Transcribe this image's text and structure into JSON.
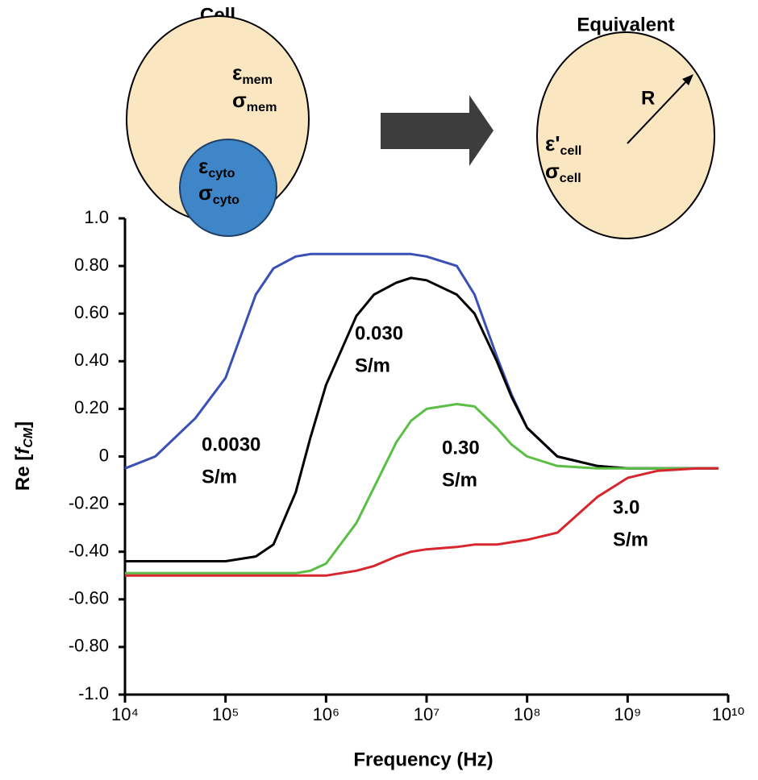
{
  "diagram": {
    "left_title": "Cell",
    "right_title": "Equivalent",
    "mem_eps": {
      "symbol": "ε",
      "sub": "mem"
    },
    "mem_sigma": {
      "symbol": "σ",
      "sub": "mem"
    },
    "cyto_eps": {
      "symbol": "ε",
      "sub": "cyto"
    },
    "cyto_sigma": {
      "symbol": "σ",
      "sub": "cyto"
    },
    "cell_eps": {
      "symbol": "ε'",
      "sub": "cell"
    },
    "cell_sigma": {
      "symbol": "σ",
      "sub": "cell"
    },
    "radius": "R"
  },
  "chart_data": {
    "type": "line",
    "x_label": "Frequency (Hz)",
    "y_label": {
      "prefix": "Re [",
      "italic": "f",
      "sub": "CM",
      "suffix": "]"
    },
    "xlog": true,
    "xlim": [
      10000,
      10000000000
    ],
    "xticks": [
      {
        "value": 10000,
        "label": "10⁴"
      },
      {
        "value": 100000,
        "label": "10⁵"
      },
      {
        "value": 1000000,
        "label": "10⁶"
      },
      {
        "value": 10000000,
        "label": "10⁷"
      },
      {
        "value": 100000000,
        "label": "10⁸"
      },
      {
        "value": 1000000000,
        "label": "10⁹"
      },
      {
        "value": 10000000000,
        "label": "10¹⁰"
      }
    ],
    "ylim": [
      -1,
      1
    ],
    "yticks": [
      {
        "value": 1,
        "label": "1.0"
      },
      {
        "value": 0.8,
        "label": "0.80"
      },
      {
        "value": 0.6,
        "label": "0.60"
      },
      {
        "value": 0.4,
        "label": "0.40"
      },
      {
        "value": 0.2,
        "label": "0.20"
      },
      0,
      {
        "value": -0.2,
        "label": "-0.20"
      },
      {
        "value": -0.4,
        "label": "-0.40"
      },
      {
        "value": -0.6,
        "label": "-0.60"
      },
      {
        "value": -0.8,
        "label": "-0.80"
      },
      {
        "value": -1,
        "label": "-1.0"
      }
    ],
    "grid": false,
    "x": [
      10000,
      20000,
      50000,
      100000,
      200000,
      300000,
      500000,
      700000,
      1000000,
      2000000,
      3000000,
      5000000,
      7000000,
      10000000,
      20000000,
      30000000,
      50000000,
      70000000,
      100000000,
      200000000,
      500000000,
      1000000000,
      2000000000,
      5000000000,
      8000000000
    ],
    "series": [
      {
        "name": "0.0030 S/m",
        "label_lines": [
          "0.0030",
          "S/m"
        ],
        "color": "#3b50b5",
        "values": [
          -0.05,
          0.0,
          0.16,
          0.33,
          0.68,
          0.79,
          0.84,
          0.85,
          0.85,
          0.85,
          0.85,
          0.85,
          0.85,
          0.84,
          0.8,
          0.68,
          0.42,
          0.26,
          0.12,
          0.0,
          -0.04,
          -0.05,
          -0.05,
          -0.05,
          -0.05
        ]
      },
      {
        "name": "0.030 S/m",
        "label_lines": [
          "0.030",
          "S/m"
        ],
        "color": "#000000",
        "values": [
          -0.44,
          -0.44,
          -0.44,
          -0.44,
          -0.42,
          -0.37,
          -0.15,
          0.08,
          0.3,
          0.59,
          0.68,
          0.73,
          0.75,
          0.74,
          0.68,
          0.6,
          0.4,
          0.25,
          0.12,
          0.0,
          -0.04,
          -0.05,
          -0.05,
          -0.05,
          -0.05
        ]
      },
      {
        "name": "0.30 S/m",
        "label_lines": [
          "0.30",
          "S/m"
        ],
        "color": "#5bbf45",
        "values": [
          -0.49,
          -0.49,
          -0.49,
          -0.49,
          -0.49,
          -0.49,
          -0.49,
          -0.48,
          -0.45,
          -0.28,
          -0.13,
          0.06,
          0.15,
          0.2,
          0.22,
          0.21,
          0.12,
          0.05,
          0.0,
          -0.04,
          -0.05,
          -0.05,
          -0.05,
          -0.05,
          -0.05
        ]
      },
      {
        "name": "3.0 S/m",
        "label_lines": [
          "3.0",
          "S/m"
        ],
        "color": "#d7262e",
        "values": [
          -0.5,
          -0.5,
          -0.5,
          -0.5,
          -0.5,
          -0.5,
          -0.5,
          -0.5,
          -0.5,
          -0.48,
          -0.46,
          -0.42,
          -0.4,
          -0.39,
          -0.38,
          -0.37,
          -0.37,
          -0.36,
          -0.35,
          -0.32,
          -0.17,
          -0.09,
          -0.06,
          -0.05,
          -0.05
        ]
      }
    ]
  }
}
